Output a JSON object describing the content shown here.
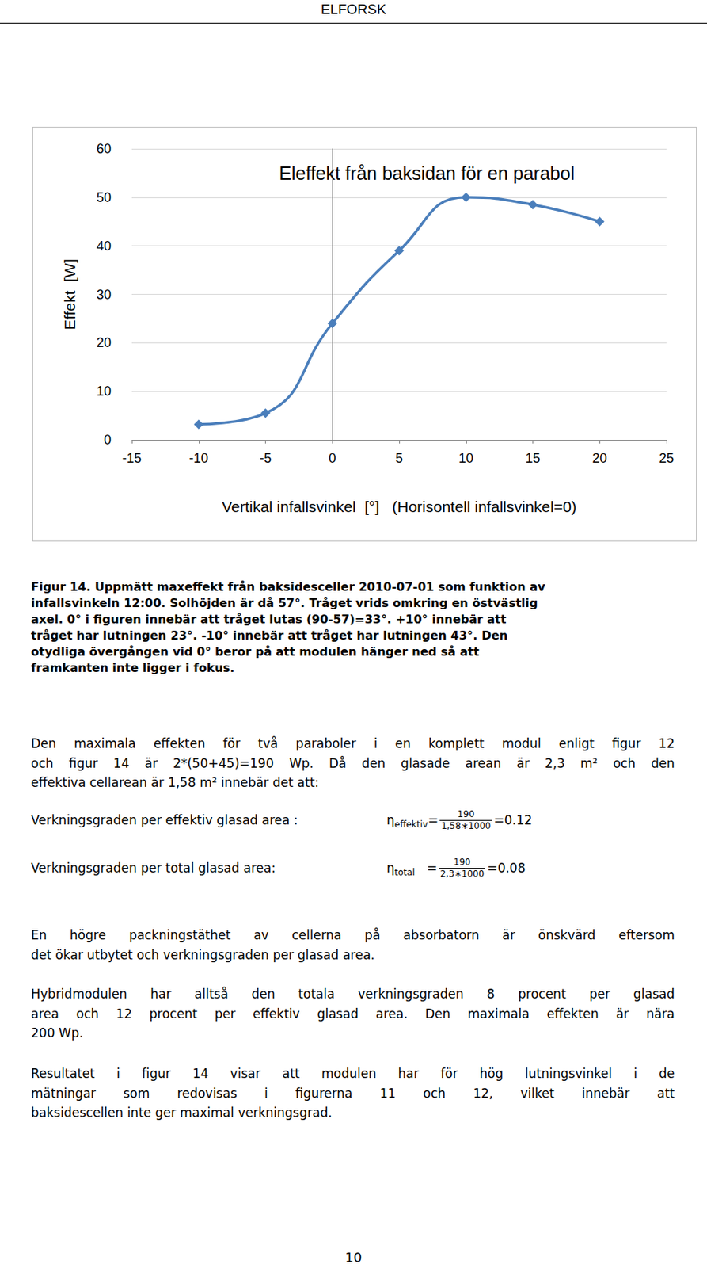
{
  "header": "ELFORSK",
  "chart_data": {
    "type": "line",
    "title": "Eleffekt från baksidan för en parabol",
    "x_label": "Vertikal infallsvinkel  [°]   (Horisontell infallsvinkel=0)",
    "y_label": "Effekt  [W]",
    "x": [
      -10,
      -5,
      0,
      5,
      10,
      15,
      20
    ],
    "values": [
      3.2,
      5.5,
      24,
      39,
      50,
      48.5,
      45
    ],
    "color": "#4a7ebb",
    "marker": "diamond",
    "line_style": "smooth",
    "xlim": [
      -15,
      25
    ],
    "xticks": [
      -15,
      -10,
      -5,
      0,
      5,
      10,
      15,
      20,
      25
    ],
    "ylim": [
      0,
      60
    ],
    "yticks": [
      0,
      10,
      20,
      30,
      40,
      50,
      60
    ],
    "grid": true
  },
  "caption": [
    "Figur 14.  Uppmätt maxeffekt från baksidesceller 2010-07-01 som funktion av",
    "infallsvinkeln 12:00. Solhöjden är då 57°.  Tråget vrids omkring en östvästlig",
    "axel.  0° i figuren innebär att tråget lutas (90-57)=33°.  +10° innebär att",
    "tråget har lutningen 23°.  -10° innebär att tråget har lutningen 43°.  Den",
    "otydliga övergången vid 0° beror på att modulen hänger ned så att",
    "framkanten inte ligger i fokus."
  ],
  "text_blocks": [
    {
      "lines": [
        "Den maximala effekten för två paraboler i en komplett modul enligt figur 12",
        "och figur 14 är 2*(50+45)=190 Wp. Då den glasade arean är 2,3 m² och den",
        "effektiva cellarean är 1,58 m² innebär det att:"
      ]
    },
    {
      "formula": {
        "label": "Verkningsgraden per effektiv glasad area : ",
        "symbol": "η",
        "subscript": "effektiv",
        "equals": "=",
        "numerator": "190",
        "denominator": "1,58∗1000",
        "result": "=0.12"
      }
    },
    {
      "formula": {
        "label": "Verkningsgraden per total glasad area:",
        "symbol": "η",
        "subscript": "total",
        "equals": "   =",
        "numerator": "190",
        "denominator": "2,3∗1000",
        "result": "=0.08"
      }
    },
    {
      "lines": [
        "En högre packningstäthet av cellerna på absorbatorn är önskvärd eftersom",
        "det ökar utbytet och verkningsgraden per glasad area."
      ]
    },
    {
      "lines": [
        "Hybridmodulen har alltså den totala verkningsgraden 8 procent per glasad",
        "area och 12 procent per effektiv glasad area. Den maximala effekten är nära",
        "200 Wp."
      ]
    },
    {
      "lines": [
        "Resultatet i figur 14 visar att modulen har för hög lutningsvinkel i de",
        "mätningar som redovisas i figurerna 11 och 12, vilket innebär att",
        "baksidescellen inte ger maximal verkningsgrad."
      ]
    }
  ],
  "page_number": "10"
}
